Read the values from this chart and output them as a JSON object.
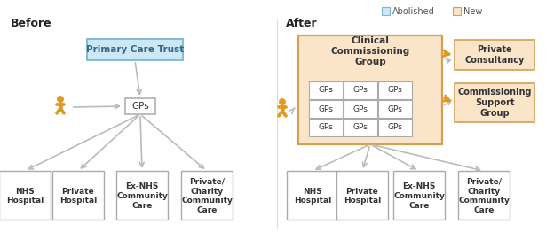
{
  "title_before": "Before",
  "title_after": "After",
  "legend_abolished": "Abolished",
  "legend_new": "New",
  "color_abolished_fill": "#cce8f4",
  "color_abolished_border": "#7ab8d4",
  "color_new_fill": "#fae5c8",
  "color_new_border": "#d4a054",
  "color_white": "#ffffff",
  "color_border_gray": "#aaaaaa",
  "color_arrow_gray": "#bbbbbb",
  "color_arrow_orange": "#e59820",
  "color_person": "#e59820",
  "color_text_dark": "#333333",
  "color_bg": "#ffffff",
  "color_divider": "#dddddd"
}
